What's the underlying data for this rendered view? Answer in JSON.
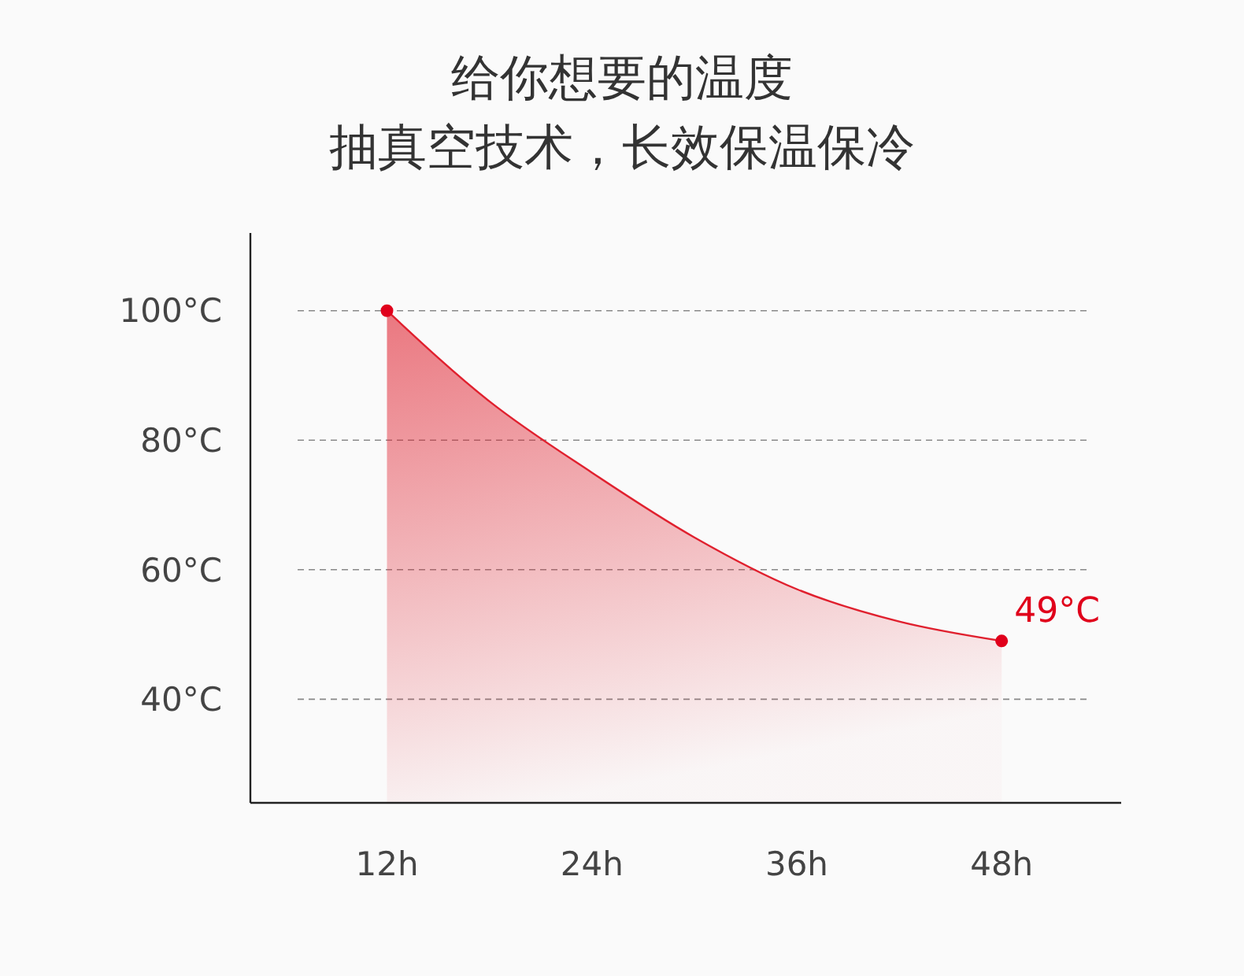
{
  "chart_data": {
    "type": "area",
    "title": "给你想要的温度",
    "subtitle": "抽真空技术，长效保温保冷",
    "series": [
      {
        "color": "#e0202e",
        "x": [
          12,
          18,
          24,
          30,
          36,
          42,
          48
        ],
        "values": [
          100,
          86,
          75,
          65,
          57,
          52,
          49
        ]
      },
      {
        "type": "scatter",
        "color": "#e0001b",
        "marker": "circle",
        "x": [
          12,
          48
        ],
        "values": [
          100,
          49
        ],
        "value_labels": [
          null,
          "49°C"
        ]
      }
    ],
    "xlim": [
      4,
      55
    ],
    "xticks": [
      {
        "value": 12,
        "label": "12h"
      },
      {
        "value": 24,
        "label": "24h"
      },
      {
        "value": 36,
        "label": "36h"
      },
      {
        "value": 48,
        "label": "48h"
      }
    ],
    "ylim": [
      24,
      112
    ],
    "yticks": [
      {
        "value": 40,
        "label": "40°C"
      },
      {
        "value": 60,
        "label": "60°C"
      },
      {
        "value": 80,
        "label": "80°C"
      },
      {
        "value": 100,
        "label": "100°C"
      }
    ],
    "grid": "y"
  }
}
